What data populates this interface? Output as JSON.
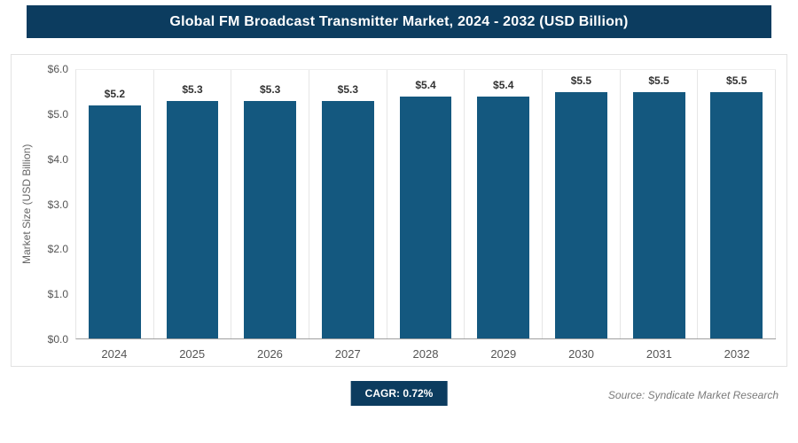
{
  "header": {
    "title": "Global FM Broadcast Transmitter Market, 2024 - 2032 (USD Billion)"
  },
  "footer": {
    "cagr_label": "CAGR: 0.72%",
    "source": "Source: Syndicate Market Research"
  },
  "colors": {
    "header_bg": "#0c3c5f",
    "bar": "#14587f",
    "badge_bg": "#0c3c5f"
  },
  "chart_data": {
    "type": "bar",
    "title": "Global FM Broadcast Transmitter Market, 2024 - 2032 (USD Billion)",
    "categories": [
      "2024",
      "2025",
      "2026",
      "2027",
      "2028",
      "2029",
      "2030",
      "2031",
      "2032"
    ],
    "values": [
      5.2,
      5.3,
      5.3,
      5.3,
      5.4,
      5.4,
      5.5,
      5.5,
      5.5
    ],
    "value_labels": [
      "$5.2",
      "$5.3",
      "$5.3",
      "$5.3",
      "$5.4",
      "$5.4",
      "$5.5",
      "$5.5",
      "$5.5"
    ],
    "xlabel": "",
    "ylabel": "Market Size (USD Billion)",
    "ylim": [
      0,
      6
    ],
    "yticks": [
      "$0.0",
      "$1.0",
      "$2.0",
      "$3.0",
      "$4.0",
      "$5.0",
      "$6.0"
    ],
    "grid": "vertical-column-separators",
    "legend": false,
    "annotations": [
      "CAGR: 0.72%"
    ]
  }
}
